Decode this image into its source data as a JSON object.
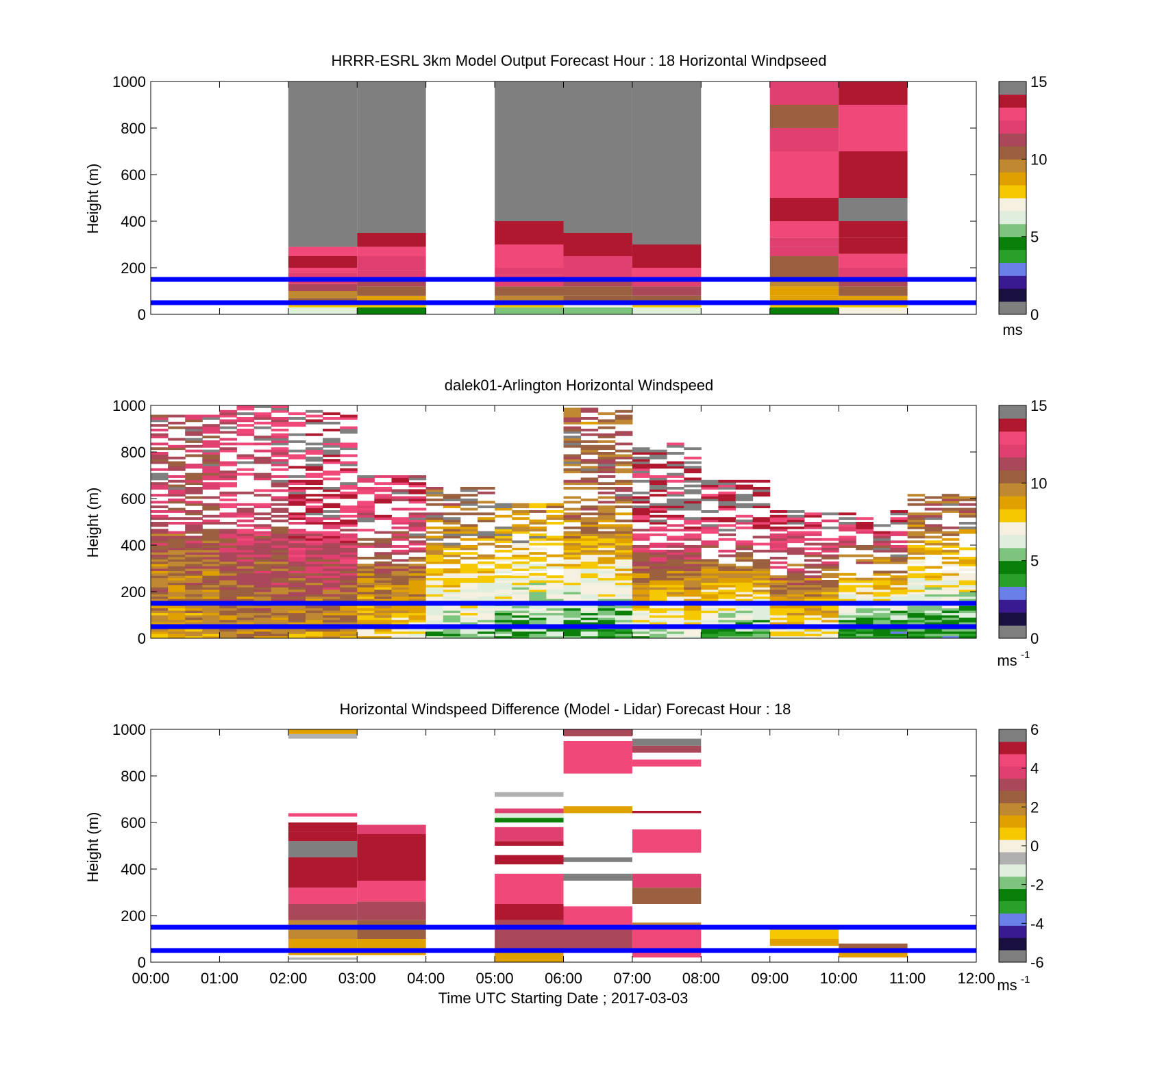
{
  "shared": {
    "xticks": [
      "00:00",
      "01:00",
      "02:00",
      "03:00",
      "04:00",
      "05:00",
      "06:00",
      "07:00",
      "08:00",
      "09:00",
      "10:00",
      "11:00",
      "12:00"
    ],
    "xlabel": "Time UTC  Starting Date ; 2017-03-03",
    "ylabel": "Height (m)",
    "yticks": [
      "0",
      "200",
      "400",
      "600",
      "800",
      "1000"
    ],
    "reference_lines_m": [
      50,
      150
    ],
    "reference_line_color": "#0000ff"
  },
  "colormap_speed": [
    "#7f7f7f",
    "#1a1040",
    "#3a1a90",
    "#6a80e8",
    "#2aa02a",
    "#0a800a",
    "#7ec47e",
    "#dfeedd",
    "#f5f0e0",
    "#f5c800",
    "#e0a000",
    "#c08830",
    "#9a6040",
    "#a84858",
    "#e04070",
    "#f04878",
    "#b01830",
    "#7f7f7f"
  ],
  "colormap_diff": [
    "#7f7f7f",
    "#1a1040",
    "#3a1a90",
    "#6a80e8",
    "#2aa02a",
    "#0a800a",
    "#7ec47e",
    "#dfeedd",
    "#b0b0b0",
    "#f5f0e0",
    "#f5c800",
    "#e0a000",
    "#c08830",
    "#9a6040",
    "#a84858",
    "#e04070",
    "#f04878",
    "#b01830",
    "#7f7f7f"
  ],
  "chart_data": [
    {
      "type": "heatmap",
      "title": "HRRR-ESRL 3km Model Output   Forecast Hour : 18 Horizontal Windpseed",
      "ylabel": "Height (m)",
      "xlim": [
        0,
        12
      ],
      "ylim": [
        0,
        1000
      ],
      "colorbar": {
        "range": [
          0,
          15
        ],
        "ticks": [
          "0",
          "5",
          "10",
          "15"
        ],
        "unit": "ms"
      },
      "columns": [
        {
          "start_hour": 2,
          "end_hour": 3,
          "cells": [
            [
              0,
              30,
              6.5
            ],
            [
              30,
              50,
              8
            ],
            [
              50,
              70,
              11
            ],
            [
              70,
              100,
              10
            ],
            [
              100,
              130,
              11.5
            ],
            [
              130,
              160,
              12
            ],
            [
              160,
              180,
              12.5
            ],
            [
              180,
              200,
              13
            ],
            [
              200,
              250,
              14
            ],
            [
              250,
              290,
              13.5
            ],
            [
              290,
              350,
              15
            ],
            [
              350,
              1000,
              -1
            ]
          ]
        },
        {
          "start_hour": 3,
          "end_hour": 4,
          "cells": [
            [
              0,
              30,
              4.5
            ],
            [
              30,
              50,
              8
            ],
            [
              50,
              80,
              9
            ],
            [
              80,
              120,
              10.5
            ],
            [
              120,
              160,
              11.5
            ],
            [
              160,
              190,
              12
            ],
            [
              190,
              250,
              12.5
            ],
            [
              250,
              290,
              13.5
            ],
            [
              290,
              350,
              14
            ],
            [
              350,
              400,
              15
            ],
            [
              400,
              1000,
              -1
            ]
          ]
        },
        {
          "start_hour": 5,
          "end_hour": 6,
          "cells": [
            [
              0,
              30,
              5
            ],
            [
              30,
              50,
              7.5
            ],
            [
              50,
              80,
              10
            ],
            [
              80,
              120,
              11
            ],
            [
              120,
              170,
              12
            ],
            [
              170,
              200,
              12.5
            ],
            [
              200,
              250,
              13
            ],
            [
              250,
              300,
              13.5
            ],
            [
              300,
              350,
              14
            ],
            [
              350,
              400,
              14.5
            ],
            [
              400,
              450,
              15
            ],
            [
              450,
              1000,
              -1
            ]
          ]
        },
        {
          "start_hour": 6,
          "end_hour": 7,
          "cells": [
            [
              0,
              30,
              5.5
            ],
            [
              30,
              50,
              7
            ],
            [
              50,
              80,
              10.5
            ],
            [
              80,
              120,
              11
            ],
            [
              120,
              160,
              11.5
            ],
            [
              160,
              200,
              12
            ],
            [
              200,
              250,
              12.5
            ],
            [
              250,
              300,
              14
            ],
            [
              300,
              350,
              14.5
            ],
            [
              350,
              400,
              15
            ],
            [
              400,
              1000,
              -1
            ]
          ]
        },
        {
          "start_hour": 7,
          "end_hour": 8,
          "cells": [
            [
              0,
              30,
              6.5
            ],
            [
              30,
              50,
              7.5
            ],
            [
              50,
              80,
              11
            ],
            [
              80,
              120,
              11.5
            ],
            [
              120,
              160,
              12.5
            ],
            [
              160,
              200,
              13
            ],
            [
              200,
              250,
              14
            ],
            [
              250,
              300,
              14.5
            ],
            [
              300,
              900,
              -1
            ],
            [
              900,
              1000,
              15
            ]
          ]
        },
        {
          "start_hour": 9,
          "end_hour": 10,
          "cells": [
            [
              0,
              30,
              4
            ],
            [
              30,
              50,
              7.5
            ],
            [
              50,
              80,
              8.5
            ],
            [
              80,
              120,
              9
            ],
            [
              120,
              160,
              10
            ],
            [
              160,
              200,
              10.5
            ],
            [
              200,
              250,
              11
            ],
            [
              250,
              290,
              12
            ],
            [
              290,
              330,
              12.5
            ],
            [
              330,
              400,
              13.5
            ],
            [
              400,
              500,
              14
            ],
            [
              500,
              600,
              13.5
            ],
            [
              600,
              700,
              13
            ],
            [
              700,
              800,
              12
            ],
            [
              800,
              900,
              11
            ],
            [
              900,
              1000,
              12
            ]
          ]
        },
        {
          "start_hour": 10,
          "end_hour": 11,
          "cells": [
            [
              0,
              30,
              7
            ],
            [
              30,
              50,
              8
            ],
            [
              50,
              80,
              9
            ],
            [
              80,
              120,
              10.5
            ],
            [
              120,
              160,
              11.5
            ],
            [
              160,
              200,
              12.5
            ],
            [
              200,
              260,
              13.5
            ],
            [
              260,
              330,
              14
            ],
            [
              330,
              400,
              14.5
            ],
            [
              400,
              500,
              15
            ],
            [
              500,
              600,
              14.5
            ],
            [
              600,
              700,
              14
            ],
            [
              700,
              900,
              13.5
            ],
            [
              900,
              1000,
              14
            ]
          ]
        }
      ]
    },
    {
      "type": "heatmap",
      "title": "dalek01-Arlington  Horizontal Windspeed",
      "ylabel": "Height (m)",
      "xlim": [
        0,
        12
      ],
      "ylim": [
        0,
        1000
      ],
      "colorbar": {
        "range": [
          0,
          15
        ],
        "ticks": [
          "0",
          "5",
          "10",
          "15"
        ],
        "unit": "ms",
        "unit_exponent": "-1"
      },
      "profiles": [
        {
          "start_hour": 0,
          "end_hour": 1,
          "top_m": 960,
          "low_speed": 9.0,
          "high_speed": 11.5
        },
        {
          "start_hour": 1,
          "end_hour": 2,
          "top_m": 1000,
          "low_speed": 9.5,
          "high_speed": 12.5
        },
        {
          "start_hour": 2,
          "end_hour": 3,
          "top_m": 980,
          "low_speed": 9.0,
          "high_speed": 14.0
        },
        {
          "start_hour": 3,
          "end_hour": 4,
          "top_m": 700,
          "low_speed": 7.5,
          "high_speed": 13.0
        },
        {
          "start_hour": 4,
          "end_hour": 5,
          "top_m": 650,
          "low_speed": 5.5,
          "high_speed": 10.5
        },
        {
          "start_hour": 5,
          "end_hour": 6,
          "top_m": 580,
          "low_speed": 5.0,
          "high_speed": 9.5
        },
        {
          "start_hour": 6,
          "end_hour": 7,
          "top_m": 1000,
          "low_speed": 4.5,
          "high_speed": 10.5
        },
        {
          "start_hour": 7,
          "end_hour": 8,
          "top_m": 840,
          "low_speed": 6.0,
          "high_speed": 14.5
        },
        {
          "start_hour": 8,
          "end_hour": 9,
          "top_m": 680,
          "low_speed": 4.5,
          "high_speed": 14.5
        },
        {
          "start_hour": 9,
          "end_hour": 10,
          "top_m": 550,
          "low_speed": 7.0,
          "high_speed": 14.5
        },
        {
          "start_hour": 10,
          "end_hour": 11,
          "top_m": 560,
          "low_speed": 3.5,
          "high_speed": 15.0
        },
        {
          "start_hour": 11,
          "end_hour": 12,
          "top_m": 620,
          "low_speed": 4.0,
          "high_speed": 11.0
        }
      ]
    },
    {
      "type": "heatmap",
      "title": "Horizontal Windspeed Difference (Model - Lidar) Forecast Hour : 18",
      "ylabel": "Height (m)",
      "xlabel": "Time UTC  Starting Date ; 2017-03-03",
      "xlim": [
        0,
        12
      ],
      "ylim": [
        0,
        1000
      ],
      "colorbar": {
        "range": [
          -6,
          6
        ],
        "ticks": [
          "-6",
          "-4",
          "-2",
          "0",
          "2",
          "4",
          "6"
        ],
        "unit": "ms",
        "unit_exponent": "-1"
      },
      "columns": [
        {
          "start_hour": 2,
          "end_hour": 3,
          "cells": [
            [
              10,
              20,
              -1
            ],
            [
              30,
              100,
              1
            ],
            [
              100,
              180,
              2
            ],
            [
              180,
              250,
              3
            ],
            [
              250,
              320,
              4.5
            ],
            [
              320,
              400,
              5
            ],
            [
              400,
              450,
              5.5
            ],
            [
              450,
              500,
              6.5
            ],
            [
              500,
              520,
              6.5
            ],
            [
              520,
              560,
              5.5
            ],
            [
              560,
              600,
              5.5
            ],
            [
              625,
              640,
              4.5
            ],
            [
              960,
              980,
              -0.5
            ],
            [
              980,
              1000,
              1
            ]
          ]
        },
        {
          "start_hour": 3,
          "end_hour": 4,
          "cells": [
            [
              30,
              100,
              1.5
            ],
            [
              100,
              180,
              2.5
            ],
            [
              180,
              260,
              3
            ],
            [
              260,
              350,
              4.5
            ],
            [
              350,
              450,
              5.5
            ],
            [
              450,
              500,
              5
            ],
            [
              500,
              550,
              5.5
            ],
            [
              550,
              590,
              4
            ]
          ]
        },
        {
          "start_hour": 5,
          "end_hour": 6,
          "cells": [
            [
              0,
              10,
              1
            ],
            [
              10,
              40,
              1.5
            ],
            [
              40,
              100,
              3
            ],
            [
              100,
              180,
              3.5
            ],
            [
              180,
              250,
              5
            ],
            [
              250,
              380,
              4.5
            ],
            [
              420,
              460,
              5.5
            ],
            [
              500,
              520,
              5
            ],
            [
              520,
              580,
              4
            ],
            [
              600,
              620,
              -2.5
            ],
            [
              620,
              640,
              -1.5
            ],
            [
              640,
              660,
              4
            ],
            [
              710,
              730,
              -1
            ]
          ]
        },
        {
          "start_hour": 6,
          "end_hour": 7,
          "cells": [
            [
              40,
              140,
              3
            ],
            [
              140,
              240,
              4.5
            ],
            [
              350,
              380,
              6.5
            ],
            [
              430,
              450,
              6.5
            ],
            [
              640,
              670,
              1.5
            ],
            [
              810,
              950,
              4.5
            ],
            [
              970,
              1000,
              3.5
            ]
          ]
        },
        {
          "start_hour": 7,
          "end_hour": 8,
          "cells": [
            [
              20,
              150,
              4.5
            ],
            [
              150,
              170,
              2
            ],
            [
              250,
              320,
              2.5
            ],
            [
              320,
              380,
              4
            ],
            [
              470,
              570,
              4.5
            ],
            [
              640,
              650,
              5
            ],
            [
              840,
              870,
              4.5
            ],
            [
              900,
              930,
              3.5
            ],
            [
              930,
              960,
              6.5
            ]
          ]
        },
        {
          "start_hour": 9,
          "end_hour": 10,
          "cells": [
            [
              70,
              100,
              1
            ],
            [
              100,
              140,
              0.5
            ]
          ]
        },
        {
          "start_hour": 10,
          "end_hour": 11,
          "cells": [
            [
              20,
              40,
              1
            ],
            [
              40,
              80,
              2.5
            ]
          ]
        }
      ]
    }
  ]
}
